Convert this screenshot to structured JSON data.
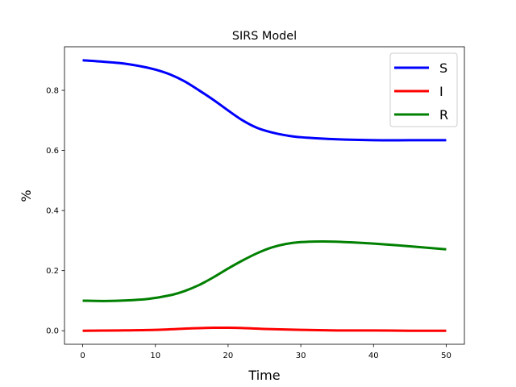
{
  "chart_data": {
    "type": "line",
    "title": "SIRS Model",
    "xlabel": "Time",
    "ylabel": "%",
    "xlim": [
      -2.5,
      52.5
    ],
    "ylim": [
      -0.045,
      0.945
    ],
    "xticks": [
      0,
      10,
      20,
      30,
      40,
      50
    ],
    "yticks": [
      0.0,
      0.2,
      0.4,
      0.6,
      0.8
    ],
    "xtick_labels": [
      "0",
      "10",
      "20",
      "30",
      "40",
      "50"
    ],
    "ytick_labels": [
      "0.0",
      "0.2",
      "0.4",
      "0.6",
      "0.8"
    ],
    "grid": false,
    "legend_position": "top-right",
    "series": [
      {
        "name": "S",
        "color": "#0000ff",
        "x": [
          0,
          5,
          8,
          10,
          12,
          14,
          16,
          18,
          20,
          22,
          24,
          26,
          28,
          30,
          35,
          40,
          45,
          50
        ],
        "y": [
          0.9,
          0.891,
          0.88,
          0.869,
          0.853,
          0.83,
          0.8,
          0.768,
          0.733,
          0.7,
          0.675,
          0.66,
          0.65,
          0.644,
          0.637,
          0.634,
          0.634,
          0.634
        ]
      },
      {
        "name": "I",
        "color": "#ff0000",
        "x": [
          0,
          5,
          10,
          15,
          18,
          20,
          22,
          25,
          30,
          35,
          40,
          45,
          50
        ],
        "y": [
          0.0,
          0.001,
          0.003,
          0.008,
          0.01,
          0.01,
          0.009,
          0.006,
          0.003,
          0.001,
          0.001,
          0.0,
          0.0
        ]
      },
      {
        "name": "R",
        "color": "#008000",
        "x": [
          0,
          3,
          6,
          9,
          12,
          14,
          16,
          18,
          20,
          22,
          24,
          26,
          28,
          30,
          33,
          36,
          40,
          45,
          50
        ],
        "y": [
          0.1,
          0.099,
          0.101,
          0.106,
          0.118,
          0.132,
          0.152,
          0.178,
          0.207,
          0.234,
          0.258,
          0.277,
          0.289,
          0.295,
          0.297,
          0.295,
          0.29,
          0.281,
          0.271
        ]
      }
    ]
  }
}
